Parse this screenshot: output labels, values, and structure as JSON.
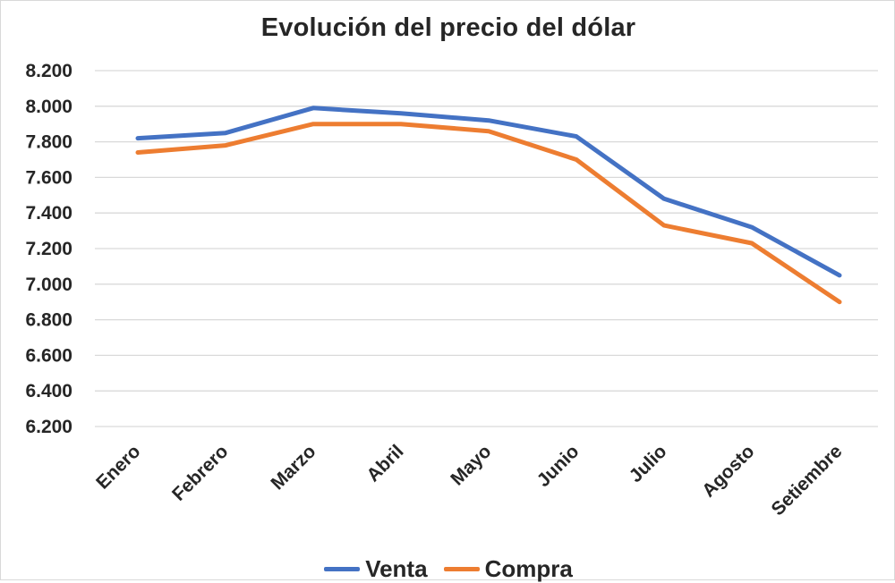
{
  "chart_data": {
    "type": "line",
    "title": "Evolución del precio del dólar",
    "categories": [
      "Enero",
      "Febrero",
      "Marzo",
      "Abril",
      "Mayo",
      "Junio",
      "Julio",
      "Agosto",
      "Setiembre"
    ],
    "series": [
      {
        "name": "Venta",
        "color": "#4472c4",
        "values": [
          7820,
          7850,
          7990,
          7960,
          7920,
          7830,
          7480,
          7320,
          7050
        ]
      },
      {
        "name": "Compra",
        "color": "#ed7d31",
        "values": [
          7740,
          7780,
          7900,
          7900,
          7860,
          7700,
          7330,
          7230,
          6900
        ]
      }
    ],
    "yticks": [
      "6.200",
      "6.400",
      "6.600",
      "6.800",
      "7.000",
      "7.200",
      "7.400",
      "7.600",
      "7.800",
      "8.000",
      "8.200"
    ],
    "ylim": [
      6200,
      8200
    ],
    "grid": true,
    "legend_position": "bottom"
  }
}
